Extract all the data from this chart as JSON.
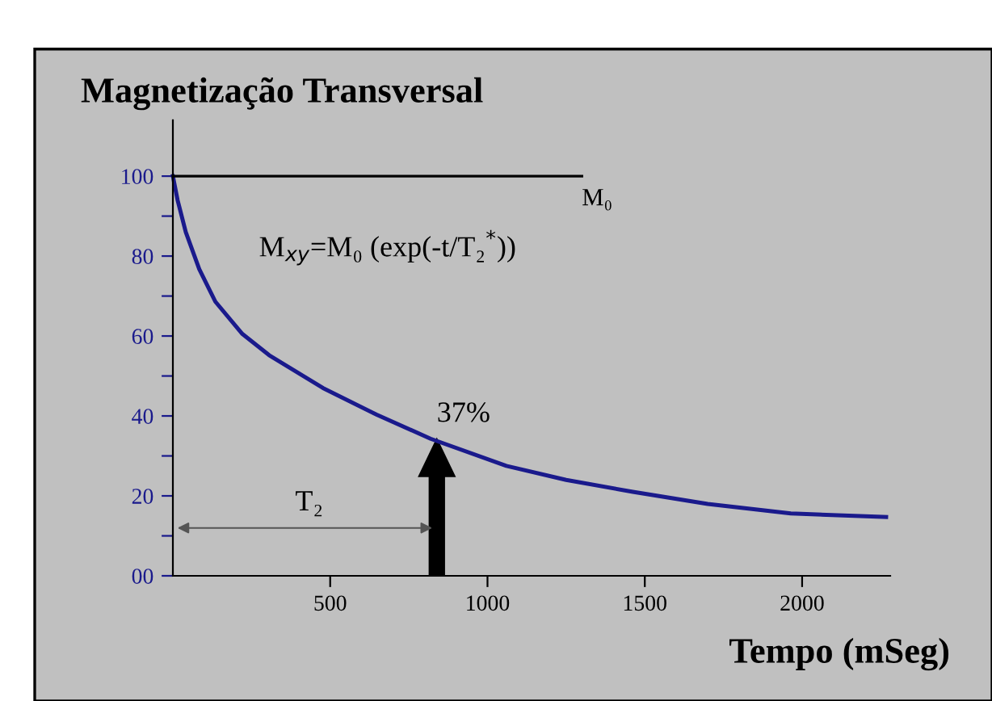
{
  "chart_data": {
    "type": "line",
    "title": "Magnetização Transversal",
    "xlabel": "Tempo (mSeg)",
    "xlim": [
      0,
      2280
    ],
    "ylim": [
      0,
      114
    ],
    "xticks": [
      500,
      1000,
      1500,
      2000
    ],
    "yticks": [
      {
        "value": 0,
        "label": "00"
      },
      {
        "value": 10,
        "label": null
      },
      20,
      {
        "value": 30,
        "label": null
      },
      40,
      {
        "value": 50,
        "label": null
      },
      60,
      {
        "value": 70,
        "label": null
      },
      80,
      {
        "value": 90,
        "label": null
      },
      100
    ],
    "grid": false,
    "legend": false,
    "marker": "none",
    "line_style": "solid",
    "series": [
      {
        "color": "#1a1a8c",
        "x": [
          0,
          15,
          41,
          84,
          135,
          221,
          306,
          477,
          648,
          819,
          1060,
          1250,
          1462,
          1700,
          1964,
          2267
        ],
        "values": [
          100,
          94,
          86,
          76.7,
          68.6,
          60.5,
          55.2,
          47,
          40.3,
          34.3,
          27.5,
          24,
          21,
          18,
          15.6,
          14.7
        ]
      },
      {
        "name": "M₀",
        "color": "#000000",
        "x": [
          0,
          1300
        ],
        "values": [
          100,
          100
        ]
      }
    ],
    "annotations": [
      "M$_{xy}$=M₀ (exp(-t/T₂$^{*}$))",
      {
        "text": "37%",
        "x": 839,
        "y": 34
      },
      "T₂"
    ]
  }
}
